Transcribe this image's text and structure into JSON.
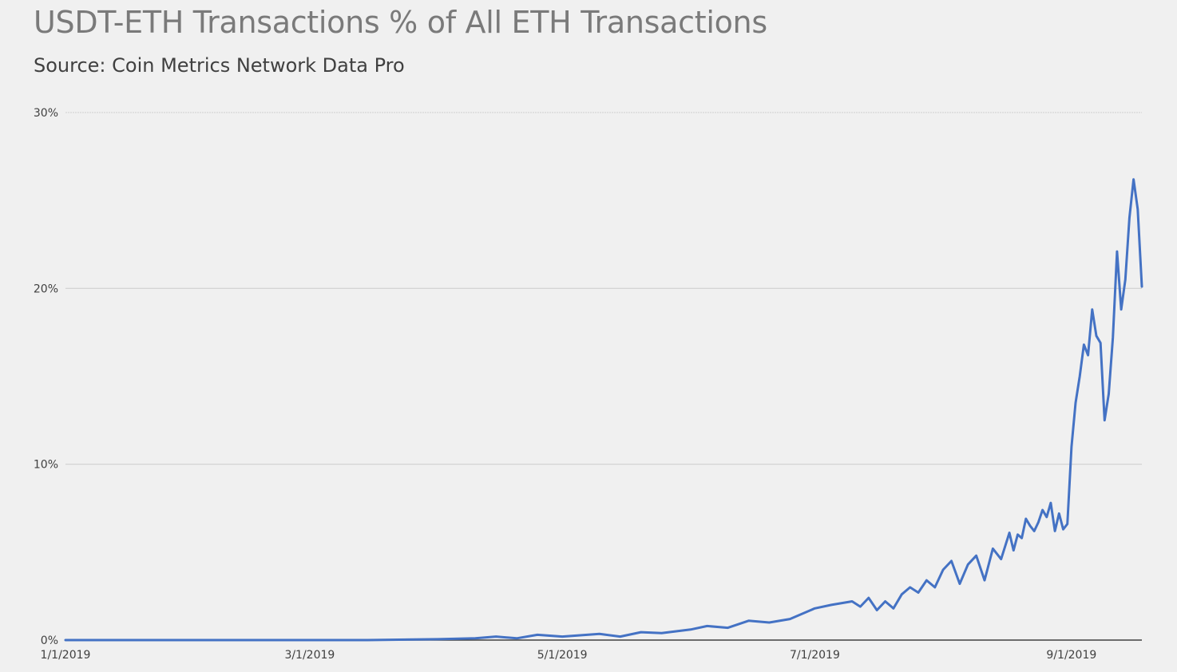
{
  "chart_data": {
    "type": "line",
    "title": "USDT-ETH Transactions % of All ETH Transactions",
    "subtitle": "Source: Coin Metrics Network Data Pro",
    "xlabel": "",
    "ylabel": "",
    "x_range": [
      "1/1/2019",
      "9/18/2019"
    ],
    "ylim": [
      0,
      30
    ],
    "y_ticks": [
      "0%",
      "10%",
      "20%",
      "30%"
    ],
    "y_tick_values": [
      0,
      10,
      20,
      30
    ],
    "x_ticks": [
      "1/1/2019",
      "3/1/2019",
      "5/1/2019",
      "7/1/2019",
      "9/1/2019"
    ],
    "grid": true,
    "legend": "none",
    "line_color": "#4472c4",
    "series": [
      {
        "x": [
          "1/1/2019",
          "1/15/2019",
          "2/1/2019",
          "2/15/2019",
          "3/1/2019",
          "3/15/2019",
          "4/1/2019",
          "4/10/2019",
          "4/15/2019",
          "4/20/2019",
          "4/25/2019",
          "5/1/2019",
          "5/10/2019",
          "5/15/2019",
          "5/20/2019",
          "5/25/2019",
          "6/1/2019",
          "6/5/2019",
          "6/10/2019",
          "6/15/2019",
          "6/20/2019",
          "6/25/2019",
          "7/1/2019",
          "7/5/2019",
          "7/10/2019",
          "7/12/2019",
          "7/14/2019",
          "7/16/2019",
          "7/18/2019",
          "7/20/2019",
          "7/22/2019",
          "7/24/2019",
          "7/26/2019",
          "7/28/2019",
          "7/30/2019",
          "8/1/2019",
          "8/3/2019",
          "8/5/2019",
          "8/7/2019",
          "8/9/2019",
          "8/11/2019",
          "8/13/2019",
          "8/15/2019",
          "8/17/2019",
          "8/18/2019",
          "8/19/2019",
          "8/20/2019",
          "8/21/2019",
          "8/22/2019",
          "8/23/2019",
          "8/24/2019",
          "8/25/2019",
          "8/26/2019",
          "8/27/2019",
          "8/28/2019",
          "8/29/2019",
          "8/30/2019",
          "8/31/2019",
          "9/1/2019",
          "9/2/2019",
          "9/3/2019",
          "9/4/2019",
          "9/5/2019",
          "9/6/2019",
          "9/7/2019",
          "9/8/2019",
          "9/9/2019",
          "9/10/2019",
          "9/11/2019",
          "9/12/2019",
          "9/13/2019",
          "9/14/2019",
          "9/15/2019",
          "9/16/2019",
          "9/17/2019",
          "9/18/2019"
        ],
        "values": [
          0.0,
          0.0,
          0.0,
          0.0,
          0.0,
          0.0,
          0.05,
          0.1,
          0.2,
          0.1,
          0.3,
          0.2,
          0.35,
          0.2,
          0.45,
          0.4,
          0.6,
          0.8,
          0.7,
          1.1,
          1.0,
          1.2,
          1.8,
          2.0,
          2.2,
          1.9,
          2.4,
          1.7,
          2.2,
          1.8,
          2.6,
          3.0,
          2.7,
          3.4,
          3.0,
          4.0,
          4.5,
          3.2,
          4.3,
          4.8,
          3.4,
          5.2,
          4.6,
          6.1,
          5.1,
          6.0,
          5.8,
          6.9,
          6.5,
          6.2,
          6.7,
          7.4,
          7.0,
          7.8,
          6.2,
          7.2,
          6.3,
          6.6,
          11.0,
          13.5,
          15.0,
          16.8,
          16.2,
          18.8,
          17.3,
          16.9,
          12.5,
          14.0,
          17.2,
          22.1,
          18.8,
          20.5,
          24.0,
          26.2,
          24.5,
          20.1
        ],
        "values_note": ""
      }
    ]
  }
}
